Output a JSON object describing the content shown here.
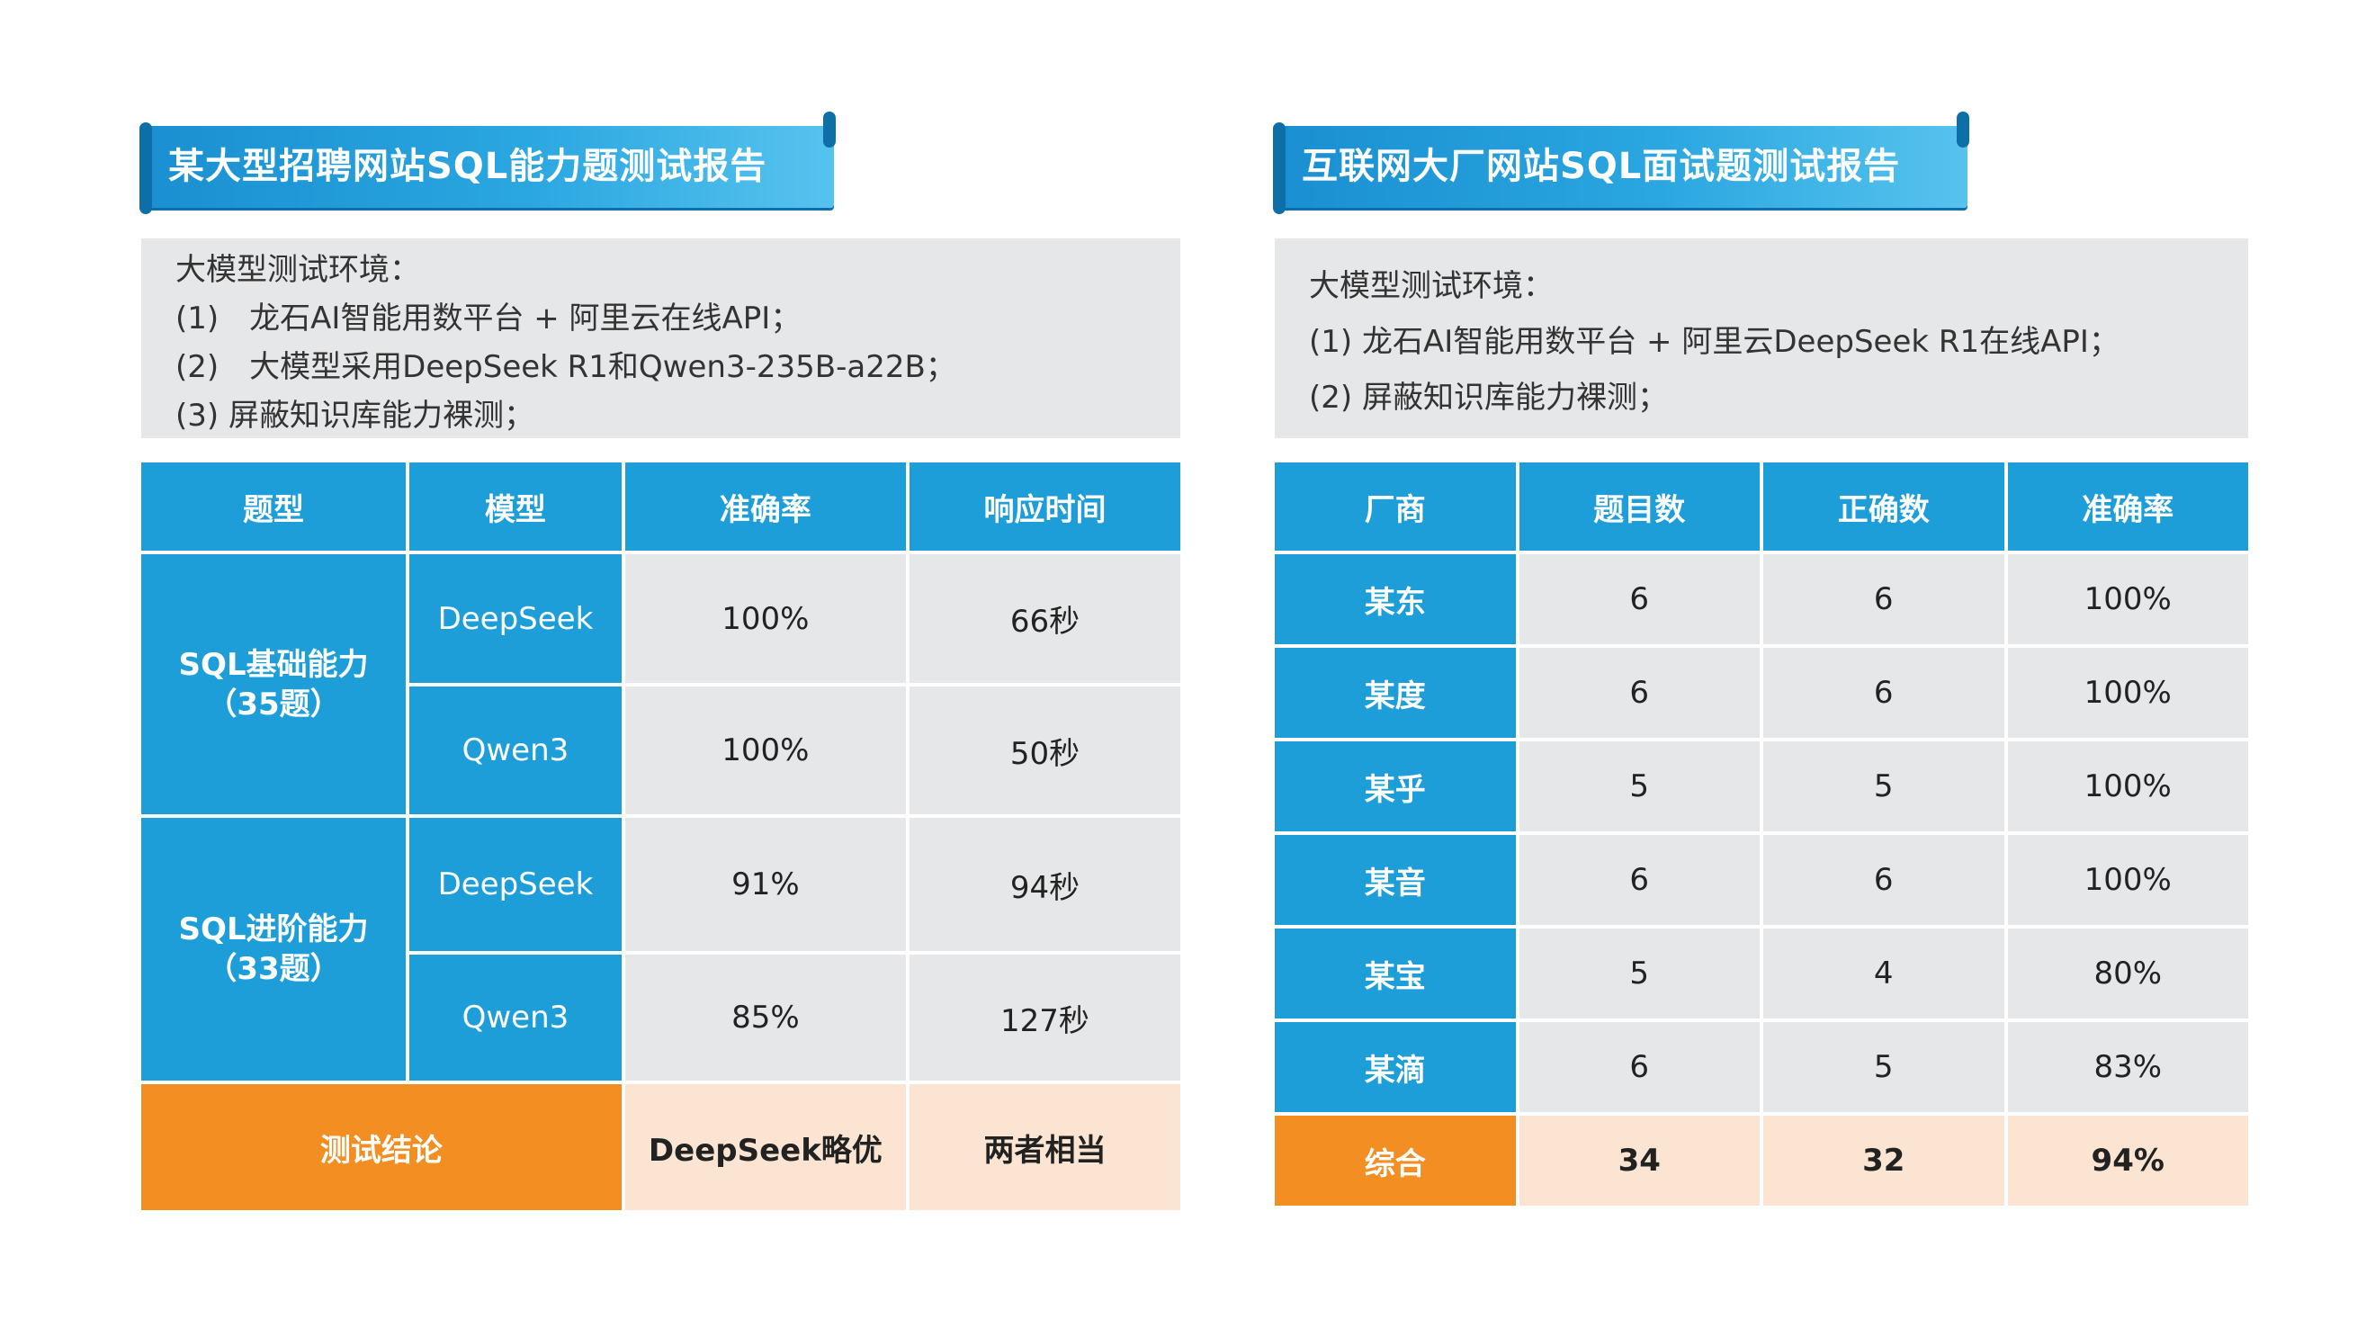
{
  "left": {
    "title": "某大型招聘网站SQL能力题测试报告",
    "env": [
      "大模型测试环境：",
      "(1)　龙石AI智能用数平台 + 阿里云在线API；",
      "(2)　大模型采用DeepSeek R1和Qwen3-235B-a22B；",
      "(3)  屏蔽知识库能力裸测；"
    ],
    "headers": [
      "题型",
      "模型",
      "准确率",
      "响应时间"
    ],
    "groups": [
      {
        "category_line1": "SQL基础能力",
        "category_line2": "（35题）",
        "rows": [
          {
            "model": "DeepSeek",
            "accuracy": "100%",
            "time": "66秒"
          },
          {
            "model": "Qwen3",
            "accuracy": "100%",
            "time": "50秒"
          }
        ]
      },
      {
        "category_line1": "SQL进阶能力",
        "category_line2": "（33题）",
        "rows": [
          {
            "model": "DeepSeek",
            "accuracy": "91%",
            "time": "94秒"
          },
          {
            "model": "Qwen3",
            "accuracy": "85%",
            "time": "127秒"
          }
        ]
      }
    ],
    "conclusion": {
      "label": "测试结论",
      "accuracy": "DeepSeek略优",
      "time": "两者相当"
    }
  },
  "right": {
    "title": "互联网大厂网站SQL面试题测试报告",
    "env": [
      "大模型测试环境：",
      "(1) 龙石AI智能用数平台 + 阿里云DeepSeek R1在线API；",
      "(2) 屏蔽知识库能力裸测；"
    ],
    "headers": [
      "厂商",
      "题目数",
      "正确数",
      "准确率"
    ],
    "rows": [
      {
        "vendor": "某东",
        "total": "6",
        "correct": "6",
        "accuracy": "100%"
      },
      {
        "vendor": "某度",
        "total": "6",
        "correct": "6",
        "accuracy": "100%"
      },
      {
        "vendor": "某乎",
        "total": "5",
        "correct": "5",
        "accuracy": "100%"
      },
      {
        "vendor": "某音",
        "total": "6",
        "correct": "6",
        "accuracy": "100%"
      },
      {
        "vendor": "某宝",
        "total": "5",
        "correct": "4",
        "accuracy": "80%"
      },
      {
        "vendor": "某滴",
        "total": "6",
        "correct": "5",
        "accuracy": "83%"
      }
    ],
    "summary": {
      "label": "综合",
      "total": "34",
      "correct": "32",
      "accuracy": "94%"
    }
  }
}
